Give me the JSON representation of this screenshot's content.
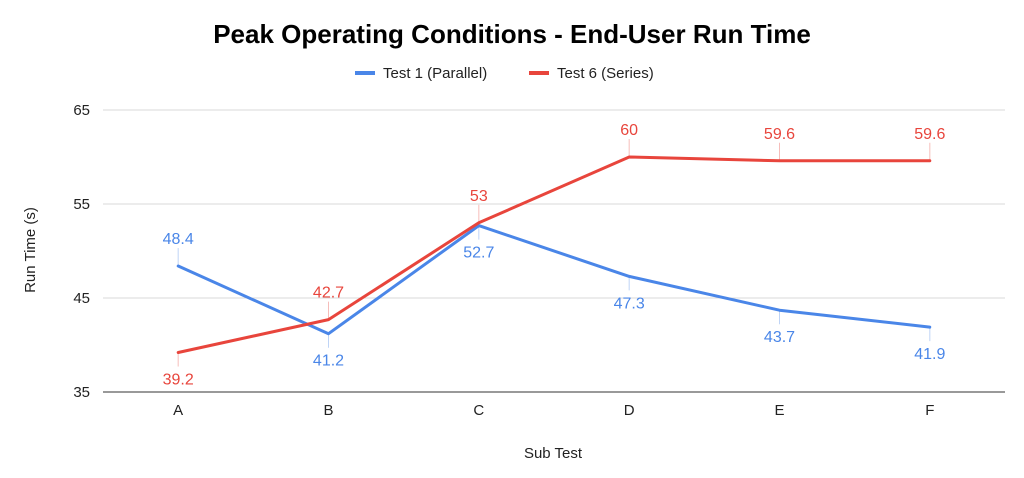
{
  "chart_data": {
    "type": "line",
    "title": "Peak Operating Conditions - End-User Run Time",
    "xlabel": "Sub Test",
    "ylabel": "Run Time (s)",
    "categories": [
      "A",
      "B",
      "C",
      "D",
      "E",
      "F"
    ],
    "ylim": [
      35,
      65
    ],
    "yticks": [
      "35",
      "45",
      "55",
      "65"
    ],
    "grid": true,
    "legend": "top-center",
    "series": [
      {
        "name": "Test 1 (Parallel)",
        "color": "#4a86e8",
        "values": [
          48.4,
          41.2,
          52.7,
          47.3,
          43.7,
          41.9
        ],
        "labels": [
          "48.4",
          "41.2",
          "52.7",
          "47.3",
          "43.7",
          "41.9"
        ]
      },
      {
        "name": "Test 6 (Series)",
        "color": "#e8453c",
        "values": [
          39.2,
          42.7,
          53,
          60,
          59.6,
          59.6
        ],
        "labels": [
          "39.2",
          "42.7",
          "53",
          "60",
          "59.6",
          "59.6"
        ]
      }
    ]
  }
}
